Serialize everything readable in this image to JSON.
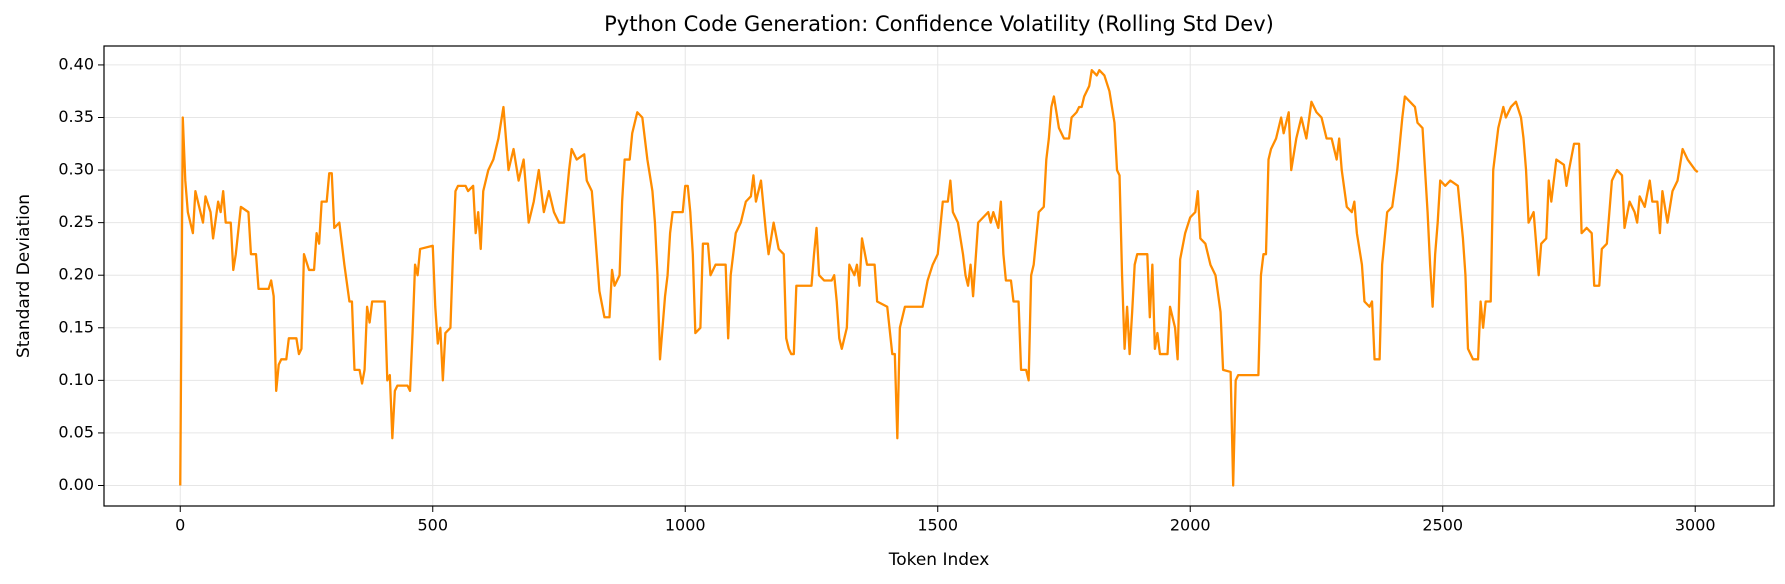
{
  "chart_data": {
    "type": "line",
    "title": "Python Code Generation: Confidence Volatility (Rolling Std Dev)",
    "xlabel": "Token Index",
    "ylabel": "Standard Deviation",
    "color": "#ff8c00",
    "grid": true,
    "xlim": [
      -151,
      3156
    ],
    "ylim": [
      -0.0195,
      0.418
    ],
    "xticks": [
      0,
      500,
      1000,
      1500,
      2000,
      2500,
      3000
    ],
    "yticks": [
      {
        "value": 0,
        "label": "0.00"
      },
      0.05,
      {
        "value": 0.1,
        "label": "0.10"
      },
      0.15,
      {
        "value": 0.2,
        "label": "0.20"
      },
      0.25,
      {
        "value": 0.3,
        "label": "0.30"
      },
      0.35,
      {
        "value": 0.4,
        "label": "0.40"
      }
    ],
    "x": [
      0,
      5,
      10,
      15,
      20,
      25,
      30,
      40,
      45,
      50,
      60,
      65,
      75,
      80,
      85,
      90,
      100,
      105,
      110,
      120,
      135,
      140,
      150,
      155,
      175,
      180,
      185,
      190,
      195,
      200,
      210,
      215,
      230,
      235,
      240,
      245,
      255,
      265,
      270,
      275,
      280,
      290,
      295,
      300,
      305,
      315,
      320,
      325,
      335,
      340,
      345,
      355,
      360,
      365,
      370,
      375,
      380,
      405,
      410,
      415,
      420,
      425,
      430,
      450,
      455,
      460,
      465,
      470,
      475,
      500,
      505,
      510,
      515,
      520,
      525,
      535,
      540,
      545,
      550,
      565,
      570,
      580,
      585,
      590,
      595,
      600,
      610,
      620,
      630,
      640,
      645,
      650,
      660,
      670,
      680,
      690,
      700,
      710,
      720,
      730,
      740,
      750,
      760,
      770,
      775,
      785,
      800,
      805,
      815,
      820,
      830,
      840,
      850,
      855,
      860,
      870,
      875,
      880,
      890,
      895,
      905,
      915,
      925,
      935,
      940,
      945,
      950,
      955,
      960,
      965,
      970,
      975,
      995,
      1000,
      1005,
      1010,
      1015,
      1020,
      1030,
      1035,
      1045,
      1050,
      1060,
      1080,
      1085,
      1090,
      1100,
      1110,
      1120,
      1130,
      1135,
      1140,
      1150,
      1160,
      1165,
      1175,
      1185,
      1195,
      1200,
      1205,
      1210,
      1215,
      1220,
      1240,
      1250,
      1255,
      1260,
      1265,
      1275,
      1290,
      1295,
      1300,
      1305,
      1310,
      1320,
      1325,
      1335,
      1340,
      1345,
      1350,
      1360,
      1375,
      1380,
      1400,
      1410,
      1415,
      1420,
      1425,
      1435,
      1470,
      1480,
      1490,
      1500,
      1510,
      1520,
      1525,
      1530,
      1540,
      1550,
      1555,
      1560,
      1565,
      1570,
      1580,
      1590,
      1600,
      1605,
      1610,
      1620,
      1625,
      1630,
      1635,
      1645,
      1650,
      1660,
      1665,
      1675,
      1680,
      1685,
      1690,
      1700,
      1710,
      1715,
      1720,
      1725,
      1730,
      1740,
      1750,
      1760,
      1765,
      1775,
      1780,
      1785,
      1790,
      1800,
      1805,
      1815,
      1820,
      1830,
      1840,
      1850,
      1855,
      1860,
      1865,
      1870,
      1875,
      1880,
      1885,
      1890,
      1895,
      1915,
      1920,
      1925,
      1930,
      1935,
      1940,
      1955,
      1960,
      1970,
      1975,
      1980,
      1990,
      2000,
      2010,
      2015,
      2020,
      2030,
      2040,
      2050,
      2060,
      2065,
      2080,
      2085,
      2090,
      2095,
      2135,
      2140,
      2145,
      2150,
      2155,
      2160,
      2170,
      2180,
      2185,
      2195,
      2200,
      2210,
      2220,
      2230,
      2240,
      2250,
      2260,
      2270,
      2280,
      2290,
      2295,
      2300,
      2310,
      2320,
      2325,
      2330,
      2340,
      2345,
      2355,
      2360,
      2365,
      2375,
      2380,
      2390,
      2400,
      2410,
      2420,
      2425,
      2435,
      2445,
      2450,
      2460,
      2465,
      2470,
      2475,
      2480,
      2485,
      2490,
      2495,
      2505,
      2515,
      2530,
      2535,
      2540,
      2545,
      2550,
      2560,
      2570,
      2575,
      2580,
      2585,
      2595,
      2600,
      2610,
      2620,
      2625,
      2635,
      2645,
      2655,
      2660,
      2665,
      2670,
      2680,
      2690,
      2695,
      2705,
      2710,
      2715,
      2725,
      2740,
      2745,
      2750,
      2760,
      2770,
      2775,
      2785,
      2795,
      2800,
      2810,
      2815,
      2825,
      2835,
      2845,
      2855,
      2860,
      2870,
      2880,
      2885,
      2890,
      2900,
      2910,
      2915,
      2925,
      2930,
      2935,
      2945,
      2955,
      2965,
      2975,
      2985,
      3000,
      3005
    ],
    "values": [
      0.0,
      0.35,
      0.29,
      0.26,
      0.25,
      0.24,
      0.28,
      0.26,
      0.25,
      0.275,
      0.26,
      0.235,
      0.27,
      0.26,
      0.28,
      0.25,
      0.25,
      0.205,
      0.22,
      0.265,
      0.26,
      0.22,
      0.22,
      0.187,
      0.187,
      0.195,
      0.18,
      0.09,
      0.115,
      0.12,
      0.12,
      0.14,
      0.14,
      0.125,
      0.13,
      0.22,
      0.205,
      0.205,
      0.24,
      0.23,
      0.27,
      0.27,
      0.297,
      0.297,
      0.245,
      0.25,
      0.23,
      0.21,
      0.175,
      0.175,
      0.11,
      0.11,
      0.097,
      0.11,
      0.17,
      0.155,
      0.175,
      0.175,
      0.1,
      0.105,
      0.045,
      0.09,
      0.095,
      0.095,
      0.09,
      0.145,
      0.21,
      0.2,
      0.225,
      0.228,
      0.17,
      0.135,
      0.15,
      0.1,
      0.145,
      0.15,
      0.22,
      0.28,
      0.285,
      0.285,
      0.28,
      0.285,
      0.24,
      0.26,
      0.225,
      0.28,
      0.3,
      0.31,
      0.33,
      0.36,
      0.33,
      0.3,
      0.32,
      0.29,
      0.31,
      0.25,
      0.27,
      0.3,
      0.26,
      0.28,
      0.26,
      0.25,
      0.25,
      0.3,
      0.32,
      0.31,
      0.315,
      0.29,
      0.28,
      0.25,
      0.185,
      0.16,
      0.16,
      0.205,
      0.19,
      0.2,
      0.27,
      0.31,
      0.31,
      0.335,
      0.355,
      0.35,
      0.31,
      0.28,
      0.25,
      0.2,
      0.12,
      0.15,
      0.18,
      0.2,
      0.24,
      0.26,
      0.26,
      0.285,
      0.285,
      0.26,
      0.22,
      0.145,
      0.15,
      0.23,
      0.23,
      0.2,
      0.21,
      0.21,
      0.14,
      0.2,
      0.24,
      0.25,
      0.27,
      0.275,
      0.295,
      0.27,
      0.29,
      0.24,
      0.22,
      0.25,
      0.225,
      0.22,
      0.14,
      0.13,
      0.125,
      0.125,
      0.19,
      0.19,
      0.19,
      0.22,
      0.245,
      0.2,
      0.195,
      0.195,
      0.2,
      0.175,
      0.14,
      0.13,
      0.15,
      0.21,
      0.2,
      0.21,
      0.19,
      0.235,
      0.21,
      0.21,
      0.175,
      0.17,
      0.125,
      0.125,
      0.045,
      0.15,
      0.17,
      0.17,
      0.195,
      0.21,
      0.22,
      0.27,
      0.27,
      0.29,
      0.26,
      0.25,
      0.22,
      0.2,
      0.19,
      0.21,
      0.18,
      0.25,
      0.255,
      0.26,
      0.25,
      0.26,
      0.245,
      0.27,
      0.22,
      0.195,
      0.195,
      0.175,
      0.175,
      0.11,
      0.11,
      0.1,
      0.2,
      0.21,
      0.26,
      0.265,
      0.31,
      0.33,
      0.36,
      0.37,
      0.34,
      0.33,
      0.33,
      0.35,
      0.355,
      0.36,
      0.36,
      0.37,
      0.38,
      0.395,
      0.39,
      0.395,
      0.39,
      0.375,
      0.345,
      0.3,
      0.295,
      0.2,
      0.13,
      0.17,
      0.125,
      0.165,
      0.21,
      0.22,
      0.22,
      0.16,
      0.21,
      0.13,
      0.145,
      0.125,
      0.125,
      0.17,
      0.15,
      0.12,
      0.215,
      0.24,
      0.255,
      0.26,
      0.28,
      0.235,
      0.23,
      0.21,
      0.2,
      0.165,
      0.11,
      0.108,
      0.0,
      0.1,
      0.105,
      0.105,
      0.2,
      0.22,
      0.22,
      0.31,
      0.32,
      0.33,
      0.35,
      0.335,
      0.355,
      0.3,
      0.33,
      0.35,
      0.33,
      0.365,
      0.355,
      0.35,
      0.33,
      0.33,
      0.31,
      0.33,
      0.3,
      0.265,
      0.26,
      0.27,
      0.24,
      0.21,
      0.175,
      0.17,
      0.175,
      0.12,
      0.12,
      0.21,
      0.26,
      0.265,
      0.3,
      0.35,
      0.37,
      0.365,
      0.36,
      0.345,
      0.34,
      0.3,
      0.26,
      0.21,
      0.17,
      0.22,
      0.25,
      0.29,
      0.285,
      0.29,
      0.285,
      0.26,
      0.235,
      0.2,
      0.13,
      0.12,
      0.12,
      0.175,
      0.15,
      0.175,
      0.175,
      0.3,
      0.34,
      0.36,
      0.35,
      0.36,
      0.365,
      0.35,
      0.33,
      0.3,
      0.25,
      0.26,
      0.2,
      0.23,
      0.235,
      0.29,
      0.27,
      0.31,
      0.305,
      0.285,
      0.3,
      0.325,
      0.325,
      0.24,
      0.245,
      0.24,
      0.19,
      0.19,
      0.225,
      0.23,
      0.29,
      0.3,
      0.295,
      0.245,
      0.27,
      0.26,
      0.25,
      0.275,
      0.265,
      0.29,
      0.27,
      0.27,
      0.24,
      0.28,
      0.25,
      0.28,
      0.29,
      0.32,
      0.31,
      0.3,
      0.298
    ]
  }
}
